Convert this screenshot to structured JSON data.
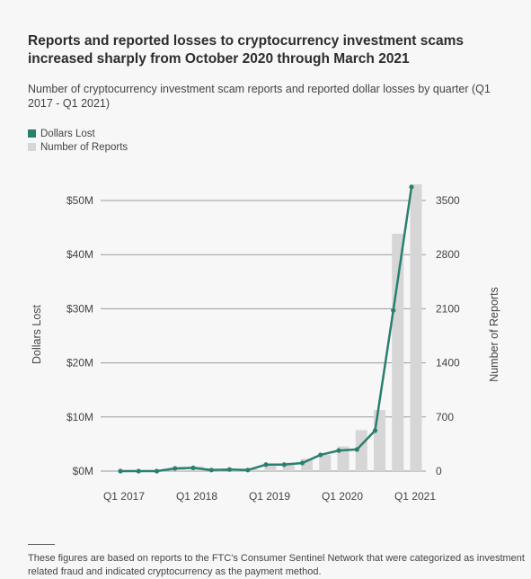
{
  "title": "Reports and reported losses to cryptocurrency investment scams increased sharply from October 2020 through March 2021",
  "subtitle": "Number of cryptocurrency investment scam reports and reported dollar losses by quarter (Q1 2017 - Q1 2021)",
  "legend": {
    "dollars": "Dollars Lost",
    "reports": "Number of Reports"
  },
  "colors": {
    "line": "#2a7f6e",
    "bars": "#d6d6d6",
    "grid": "#9a9a9a"
  },
  "footnote": "These figures are based on reports to the FTC's Consumer Sentinel Network that were categorized as investment related fraud and indicated cryptocurrency as the payment method.",
  "chart_data": {
    "type": "bar+line",
    "categories": [
      "Q1 2017",
      "Q2 2017",
      "Q3 2017",
      "Q4 2017",
      "Q1 2018",
      "Q2 2018",
      "Q3 2018",
      "Q4 2018",
      "Q1 2019",
      "Q2 2019",
      "Q3 2019",
      "Q4 2019",
      "Q1 2020",
      "Q2 2020",
      "Q3 2020",
      "Q4 2020",
      "Q1 2021"
    ],
    "x_tick_labels": [
      "Q1 2017",
      "Q1 2018",
      "Q1 2019",
      "Q1 2020",
      "Q1 2021"
    ],
    "series": [
      {
        "name": "Dollars Lost",
        "kind": "line",
        "axis": "left",
        "values": [
          0,
          0,
          0,
          0.5,
          0.6,
          0.2,
          0.3,
          0.2,
          1.2,
          1.2,
          1.5,
          3.0,
          3.8,
          4.0,
          7.5,
          29.7,
          52.5
        ]
      },
      {
        "name": "Number of Reports",
        "kind": "bar",
        "axis": "right",
        "values": [
          5,
          10,
          10,
          30,
          60,
          30,
          25,
          25,
          70,
          110,
          160,
          210,
          320,
          530,
          790,
          3070,
          3710
        ]
      }
    ],
    "ylabel_left": "Dollars Lost",
    "ylabel_right": "Number of Reports",
    "ylim_left": [
      0,
      50
    ],
    "yticks_left": [
      "$0M",
      "$10M",
      "$20M",
      "$30M",
      "$40M",
      "$50M"
    ],
    "ylim_right": [
      0,
      3500
    ],
    "yticks_right": [
      "0",
      "700",
      "1400",
      "2100",
      "2800",
      "3500"
    ],
    "grid": true,
    "legend_position": "top-left"
  }
}
